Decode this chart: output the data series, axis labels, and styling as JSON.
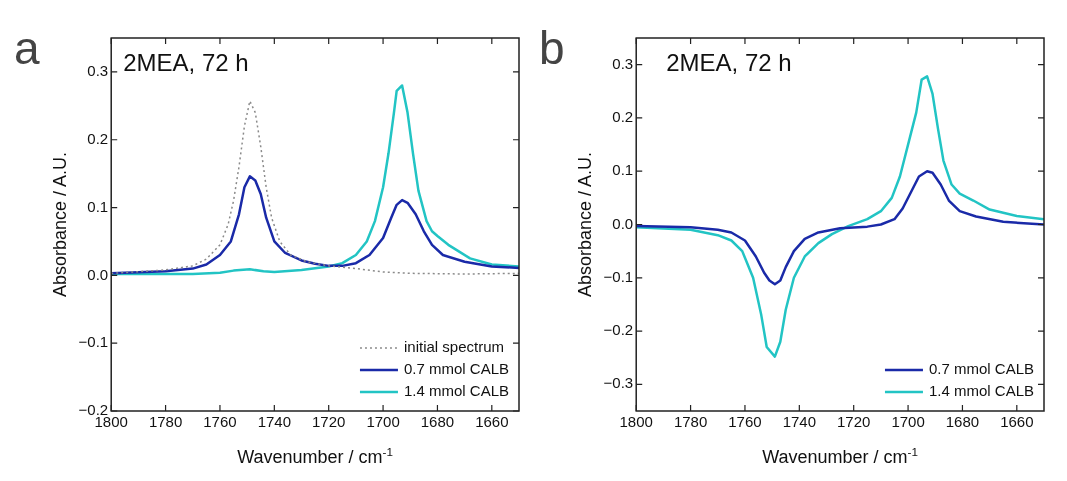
{
  "chart_data": [
    {
      "type": "line",
      "title": "a",
      "annotations": [
        "2MEA, 72 h"
      ],
      "xlabel": "Wavenumber / cm$^{-1}$",
      "ylabel": "Absorbance / A.U.",
      "xlim": [
        1800,
        1650
      ],
      "xticks": [
        1800,
        1780,
        1760,
        1740,
        1720,
        1700,
        1680,
        1660
      ],
      "ylim": [
        -0.2,
        0.35
      ],
      "yticks": [
        -0.2,
        -0.1,
        {
          "value": 0,
          "label": "0.0"
        },
        0.1,
        0.2,
        0.3
      ],
      "grid": false,
      "legend": "bottom right",
      "marker": "none",
      "series": [
        {
          "name": "initial spectrum",
          "color": "#8a8a8a",
          "line_style": "dotted",
          "x": [
            1800,
            1780,
            1770,
            1765,
            1760,
            1757,
            1755,
            1753,
            1751,
            1749,
            1747,
            1745,
            1743,
            1741,
            1738,
            1734,
            1728,
            1720,
            1710,
            1700,
            1690,
            1670,
            1650
          ],
          "values": [
            0.003,
            0.008,
            0.014,
            0.024,
            0.045,
            0.075,
            0.11,
            0.16,
            0.22,
            0.257,
            0.24,
            0.19,
            0.13,
            0.085,
            0.05,
            0.03,
            0.02,
            0.014,
            0.01,
            0.005,
            0.003,
            0.002,
            0.003
          ]
        },
        {
          "name": "0.7 mmol CALB",
          "color": "#1a2aa8",
          "line_style": "solid",
          "x": [
            1800,
            1780,
            1770,
            1765,
            1760,
            1756,
            1753,
            1751,
            1749,
            1747,
            1745,
            1743,
            1740,
            1736,
            1730,
            1725,
            1720,
            1715,
            1710,
            1705,
            1700,
            1697,
            1695,
            1693,
            1691,
            1688,
            1685,
            1682,
            1678,
            1670,
            1660,
            1650
          ],
          "values": [
            0.003,
            0.006,
            0.01,
            0.016,
            0.03,
            0.05,
            0.09,
            0.13,
            0.146,
            0.14,
            0.12,
            0.085,
            0.05,
            0.033,
            0.022,
            0.017,
            0.014,
            0.014,
            0.018,
            0.03,
            0.055,
            0.085,
            0.104,
            0.111,
            0.107,
            0.09,
            0.065,
            0.045,
            0.03,
            0.02,
            0.013,
            0.011
          ]
        },
        {
          "name": "1.4 mmol CALB",
          "color": "#22c4c4",
          "line_style": "solid",
          "x": [
            1800,
            1770,
            1760,
            1755,
            1749,
            1744,
            1740,
            1730,
            1720,
            1715,
            1710,
            1706,
            1703,
            1700,
            1698,
            1696,
            1695,
            1693,
            1691,
            1689,
            1687,
            1684,
            1682,
            1680,
            1676,
            1672,
            1668,
            1660,
            1650
          ],
          "values": [
            0.002,
            0.002,
            0.004,
            0.007,
            0.009,
            0.006,
            0.005,
            0.008,
            0.013,
            0.018,
            0.03,
            0.05,
            0.08,
            0.13,
            0.18,
            0.24,
            0.272,
            0.28,
            0.24,
            0.18,
            0.125,
            0.08,
            0.065,
            0.058,
            0.045,
            0.035,
            0.025,
            0.016,
            0.013
          ]
        }
      ]
    },
    {
      "type": "line",
      "title": "b",
      "annotations": [
        "2MEA, 72 h"
      ],
      "xlabel": "Wavenumber / cm$^{-1}$",
      "ylabel": "Absorbance / A.U.",
      "xlim": [
        1800,
        1650
      ],
      "xticks": [
        1800,
        1780,
        1760,
        1740,
        1720,
        1700,
        1680,
        1660
      ],
      "ylim": [
        -0.35,
        0.35
      ],
      "yticks": [
        -0.3,
        -0.2,
        -0.1,
        {
          "value": 0,
          "label": "0.0"
        },
        0.1,
        0.2,
        0.3
      ],
      "grid": false,
      "legend": "bottom right",
      "marker": "none",
      "series": [
        {
          "name": "0.7 mmol CALB",
          "color": "#1a2aa8",
          "line_style": "solid",
          "x": [
            1800,
            1780,
            1770,
            1765,
            1760,
            1756,
            1753,
            1751,
            1749,
            1747,
            1745,
            1742,
            1738,
            1733,
            1725,
            1715,
            1710,
            1705,
            1702,
            1699,
            1696,
            1693,
            1691,
            1688,
            1685,
            1681,
            1675,
            1665,
            1650
          ],
          "values": [
            -0.003,
            -0.005,
            -0.01,
            -0.015,
            -0.03,
            -0.06,
            -0.09,
            -0.105,
            -0.112,
            -0.105,
            -0.08,
            -0.05,
            -0.027,
            -0.015,
            -0.007,
            -0.004,
            0.0,
            0.01,
            0.03,
            0.06,
            0.09,
            0.1,
            0.097,
            0.075,
            0.045,
            0.025,
            0.015,
            0.005,
            0.0
          ]
        },
        {
          "name": "1.4 mmol CALB",
          "color": "#22c4c4",
          "line_style": "solid",
          "x": [
            1800,
            1780,
            1770,
            1765,
            1761,
            1757,
            1754,
            1752,
            1749,
            1747,
            1745,
            1742,
            1738,
            1733,
            1728,
            1722,
            1715,
            1710,
            1706,
            1703,
            1700,
            1697,
            1695,
            1693,
            1691,
            1689,
            1687,
            1684,
            1681,
            1676,
            1670,
            1660,
            1650
          ],
          "values": [
            -0.005,
            -0.01,
            -0.02,
            -0.03,
            -0.05,
            -0.1,
            -0.17,
            -0.23,
            -0.248,
            -0.22,
            -0.16,
            -0.1,
            -0.06,
            -0.035,
            -0.018,
            -0.003,
            0.01,
            0.025,
            0.05,
            0.09,
            0.15,
            0.21,
            0.272,
            0.278,
            0.245,
            0.18,
            0.12,
            0.075,
            0.058,
            0.045,
            0.028,
            0.016,
            0.01
          ]
        }
      ]
    }
  ]
}
